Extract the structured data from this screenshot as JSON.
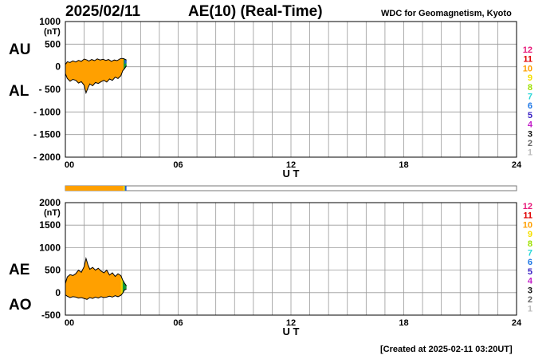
{
  "header": {
    "date": "2025/02/11",
    "title": "AE(10) (Real-Time)",
    "organization": "WDC for Geomagnetism, Kyoto",
    "created": "[Created at 2025-02-11 03:20UT]"
  },
  "panel_labels": {
    "top": [
      "AU",
      "AL"
    ],
    "bottom": [
      "AE",
      "AO"
    ]
  },
  "station_legend": [
    {
      "label": "12",
      "color": "#e8197a"
    },
    {
      "label": "11",
      "color": "#e00000"
    },
    {
      "label": "10",
      "color": "#ff9f00"
    },
    {
      "label": "9",
      "color": "#f5e000"
    },
    {
      "label": "8",
      "color": "#9ee000"
    },
    {
      "label": "7",
      "color": "#29d6d6"
    },
    {
      "label": "6",
      "color": "#1f78e6"
    },
    {
      "label": "5",
      "color": "#3a21c4"
    },
    {
      "label": "4",
      "color": "#c21fc8"
    },
    {
      "label": "3",
      "color": "#111111"
    },
    {
      "label": "2",
      "color": "#666666"
    },
    {
      "label": "1",
      "color": "#bbbbbb"
    }
  ],
  "colors": {
    "fill": "#ffa000",
    "fill_tail_green": "#0f9a3a",
    "fill_tail_blue": "#1f5fd0",
    "fill_tail_yellow": "#e8d400",
    "grid": "#999999"
  },
  "chart_data": [
    {
      "type": "area",
      "panel": "top",
      "series": [
        {
          "name": "AU",
          "x": [
            0.0,
            0.1,
            0.25,
            0.4,
            0.55,
            0.7,
            0.85,
            1.0,
            1.15,
            1.25,
            1.4,
            1.55,
            1.7,
            1.85,
            2.0,
            2.15,
            2.3,
            2.45,
            2.6,
            2.75,
            2.9,
            3.0,
            3.1,
            3.25
          ],
          "y": [
            50,
            110,
            95,
            130,
            105,
            140,
            120,
            170,
            150,
            125,
            160,
            135,
            175,
            150,
            165,
            140,
            160,
            120,
            150,
            135,
            175,
            185,
            180,
            150
          ]
        },
        {
          "name": "AL",
          "x": [
            0.0,
            0.1,
            0.25,
            0.4,
            0.55,
            0.7,
            0.85,
            1.0,
            1.1,
            1.2,
            1.3,
            1.45,
            1.6,
            1.75,
            1.9,
            2.05,
            2.2,
            2.35,
            2.5,
            2.65,
            2.8,
            2.95,
            3.05,
            3.15,
            3.25
          ],
          "y": [
            -150,
            -260,
            -320,
            -280,
            -300,
            -360,
            -330,
            -410,
            -580,
            -470,
            -380,
            -420,
            -350,
            -370,
            -330,
            -300,
            -340,
            -270,
            -300,
            -230,
            -260,
            -200,
            -90,
            -40,
            20
          ]
        }
      ],
      "xlabel": "U T",
      "ylabel": "(nT)",
      "xlim": [
        0,
        24
      ],
      "ylim": [
        -2000,
        1000
      ],
      "xticks": [
        "00",
        "06",
        "12",
        "18",
        "24"
      ],
      "yticks": [
        "1000",
        "500",
        "0",
        "- 500",
        "- 1000",
        "- 1500",
        "- 2000"
      ],
      "grid": true
    },
    {
      "type": "area",
      "panel": "bottom",
      "series": [
        {
          "name": "AE",
          "x": [
            0.0,
            0.1,
            0.25,
            0.4,
            0.55,
            0.7,
            0.85,
            1.0,
            1.1,
            1.2,
            1.3,
            1.45,
            1.6,
            1.75,
            1.9,
            2.05,
            2.2,
            2.35,
            2.5,
            2.65,
            2.8,
            2.95,
            3.05,
            3.15,
            3.25
          ],
          "y": [
            200,
            350,
            400,
            380,
            420,
            500,
            450,
            580,
            760,
            620,
            520,
            560,
            500,
            540,
            480,
            440,
            500,
            390,
            440,
            360,
            420,
            380,
            280,
            210,
            150
          ]
        },
        {
          "name": "AO",
          "x": [
            0.0,
            0.1,
            0.25,
            0.4,
            0.55,
            0.7,
            0.85,
            1.0,
            1.15,
            1.3,
            1.45,
            1.6,
            1.75,
            1.9,
            2.05,
            2.2,
            2.35,
            2.5,
            2.65,
            2.8,
            2.95,
            3.05,
            3.15,
            3.25
          ],
          "y": [
            -50,
            -80,
            -110,
            -90,
            -100,
            -120,
            -110,
            -130,
            -150,
            -110,
            -130,
            -100,
            -120,
            -90,
            -110,
            -100,
            -80,
            -100,
            -70,
            -90,
            -60,
            -10,
            60,
            80
          ]
        }
      ],
      "xlabel": "U T",
      "ylabel": "(nT)",
      "xlim": [
        0,
        24
      ],
      "ylim": [
        -500,
        2000
      ],
      "xticks": [
        "00",
        "06",
        "12",
        "18",
        "24"
      ],
      "yticks": [
        "2000",
        "1500",
        "1000",
        "500",
        "0",
        "-500"
      ],
      "grid": true
    }
  ],
  "coverage_bar": {
    "xlim": [
      0,
      24
    ],
    "filled_until": 3.25
  }
}
